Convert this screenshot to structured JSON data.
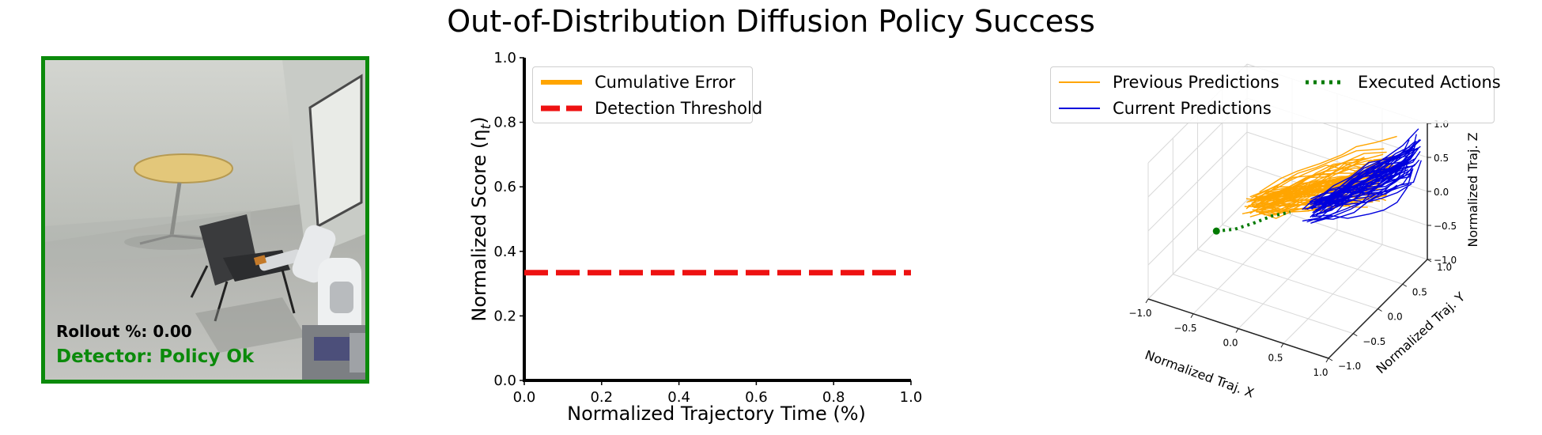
{
  "title": "Out-of-Distribution Diffusion Policy Success",
  "camera_panel": {
    "rollout_text": "Rollout %: 0.00",
    "detector_text": "Detector: Policy Ok",
    "status_color": "#0b8a0b",
    "scene_description_icon": "robot-arm-scene"
  },
  "chart_data": [
    {
      "type": "line",
      "xlabel": "Normalized Trajectory Time (%)",
      "ylabel": "Normalized Score (η",
      "ylabel_subscript": "t",
      "ylabel_suffix": ")",
      "xlim": [
        0.0,
        1.0
      ],
      "ylim": [
        0.0,
        1.0
      ],
      "x_ticks": [
        "0.0",
        "0.2",
        "0.4",
        "0.6",
        "0.8",
        "1.0"
      ],
      "y_ticks": [
        "0.0",
        "0.2",
        "0.4",
        "0.6",
        "0.8",
        "1.0"
      ],
      "grid": false,
      "legend_position": "top-left",
      "series": [
        {
          "name": "Cumulative Error",
          "color": "#FFA500",
          "style": "solid",
          "x": [],
          "y": []
        },
        {
          "name": "Detection Threshold",
          "color": "#EE1111",
          "style": "dashed",
          "x": [
            0.0,
            1.0
          ],
          "y": [
            0.334,
            0.334
          ]
        }
      ]
    },
    {
      "type": "line3d",
      "xlabel": "Normalized Traj. X",
      "ylabel": "Normalized Traj. Y",
      "zlabel": "Normalized Traj. Z",
      "xlim": [
        -1.0,
        1.0
      ],
      "ylim": [
        -1.0,
        1.0
      ],
      "zlim": [
        -1.0,
        1.0
      ],
      "x_ticks": [
        "−1.0",
        "−0.5",
        "0.0",
        "0.5",
        "1.0"
      ],
      "y_ticks": [
        "−1.0",
        "−0.5",
        "0.0",
        "0.5",
        "1.0"
      ],
      "z_ticks": [
        "−1.0",
        "−0.5",
        "0.0",
        "0.5",
        "1.0"
      ],
      "legend_position": "top",
      "series": [
        {
          "name": "Previous Predictions",
          "color": "#FFA500",
          "style": "solid"
        },
        {
          "name": "Current Predictions",
          "color": "#0000DD",
          "style": "solid"
        },
        {
          "name": "Executed Actions",
          "color": "#007A00",
          "style": "dotted"
        }
      ]
    }
  ]
}
